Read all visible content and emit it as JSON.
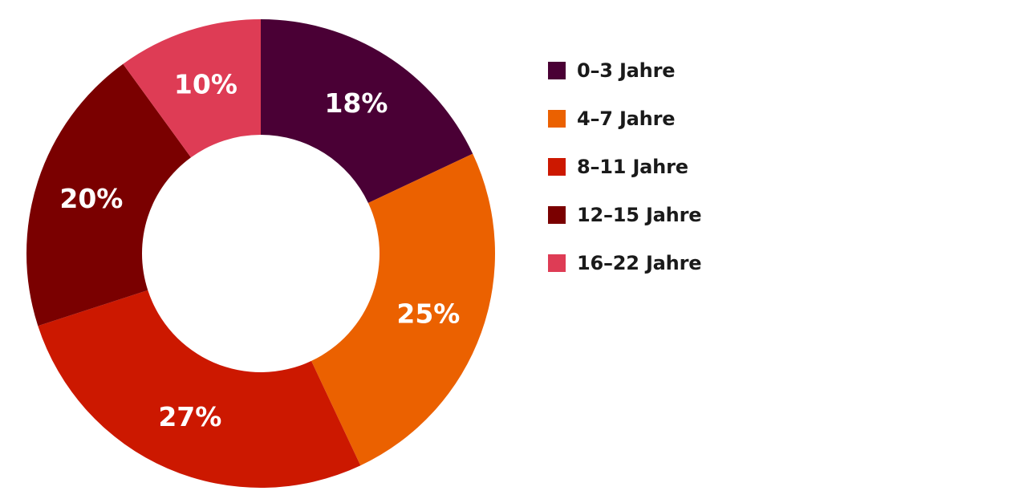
{
  "chart_data": {
    "type": "pie",
    "variant": "donut",
    "categories": [
      "0–3 Jahre",
      "4–7 Jahre",
      "8–11 Jahre",
      "12–15 Jahre",
      "16–22 Jahre"
    ],
    "values": [
      18,
      25,
      27,
      20,
      10
    ],
    "value_labels": [
      "18%",
      "25%",
      "27%",
      "20%",
      "10%"
    ],
    "colors": [
      "#4a0035",
      "#eb6100",
      "#cc1800",
      "#7a0000",
      "#de3c55"
    ],
    "start_angle": "top",
    "direction": "clockwise",
    "legend_position": "right"
  }
}
